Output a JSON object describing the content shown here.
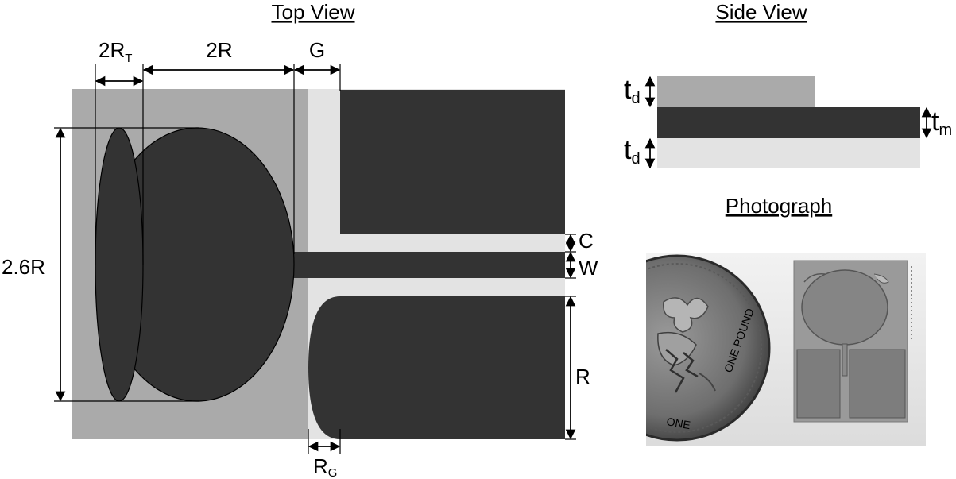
{
  "titles": {
    "top_view": "Top View",
    "side_view": "Side View",
    "photograph": "Photograph"
  },
  "dimensions": {
    "two_r_t_main": "2R",
    "two_r_t_sub": "T",
    "two_r": "2R",
    "g": "G",
    "c": "C",
    "w": "W",
    "r": "R",
    "height": "2.6R",
    "r_g_main": "R",
    "r_g_sub": "G",
    "td_top_main": "t",
    "td_top_sub": "d",
    "tm_main": "t",
    "tm_sub": "m",
    "td_bottom_main": "t",
    "td_bottom_sub": "d"
  },
  "photo": {
    "coin_text_1": "ONE POUND",
    "coin_text_2": "ONE"
  },
  "colors": {
    "metal": "#333333",
    "substrate_dark": "#aaaaaa",
    "substrate_light": "#e3e3e3",
    "line": "#000000"
  }
}
